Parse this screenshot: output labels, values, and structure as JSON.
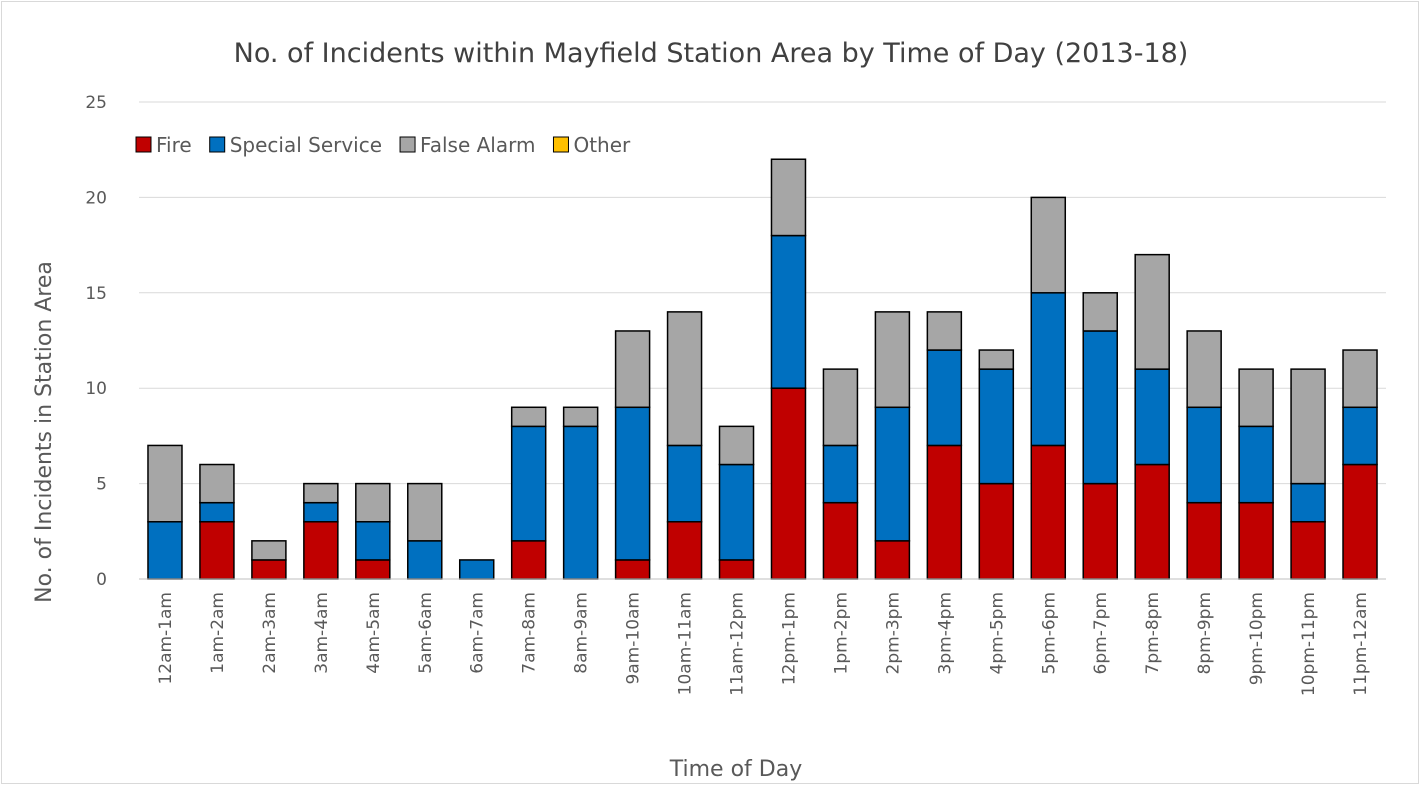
{
  "chart_data": {
    "type": "bar",
    "stacked": true,
    "title": "No. of Incidents within Mayfield Station Area by Time of Day (2013-18)",
    "xlabel": "Time of Day",
    "ylabel": "No. of Incidents in Station Area",
    "ylim": [
      0,
      25
    ],
    "yticks": [
      0,
      5,
      10,
      15,
      20,
      25
    ],
    "grid": true,
    "legend_position": "top-left",
    "categories": [
      "12am-1am",
      "1am-2am",
      "2am-3am",
      "3am-4am",
      "4am-5am",
      "5am-6am",
      "6am-7am",
      "7am-8am",
      "8am-9am",
      "9am-10am",
      "10am-11am",
      "11am-12pm",
      "12pm-1pm",
      "1pm-2pm",
      "2pm-3pm",
      "3pm-4pm",
      "4pm-5pm",
      "5pm-6pm",
      "6pm-7pm",
      "7pm-8pm",
      "8pm-9pm",
      "9pm-10pm",
      "10pm-11pm",
      "11pm-12am"
    ],
    "series": [
      {
        "name": "Fire",
        "color": "#c00000",
        "values": [
          0,
          3,
          1,
          3,
          1,
          0,
          0,
          2,
          0,
          1,
          3,
          1,
          10,
          4,
          2,
          7,
          5,
          7,
          5,
          6,
          4,
          4,
          3,
          6
        ]
      },
      {
        "name": "Special Service",
        "color": "#0070c0",
        "values": [
          3,
          1,
          0,
          1,
          2,
          2,
          1,
          6,
          8,
          8,
          4,
          5,
          8,
          3,
          7,
          5,
          6,
          8,
          8,
          5,
          5,
          4,
          2,
          3
        ]
      },
      {
        "name": "False Alarm",
        "color": "#a6a6a6",
        "values": [
          4,
          2,
          1,
          1,
          2,
          3,
          0,
          1,
          1,
          4,
          7,
          2,
          4,
          4,
          5,
          2,
          1,
          5,
          2,
          6,
          4,
          3,
          6,
          3
        ]
      },
      {
        "name": "Other",
        "color": "#ffc000",
        "values": [
          0,
          0,
          0,
          0,
          0,
          0,
          0,
          0,
          0,
          0,
          0,
          0,
          0,
          0,
          0,
          0,
          0,
          0,
          0,
          0,
          0,
          0,
          0,
          0
        ]
      }
    ]
  }
}
